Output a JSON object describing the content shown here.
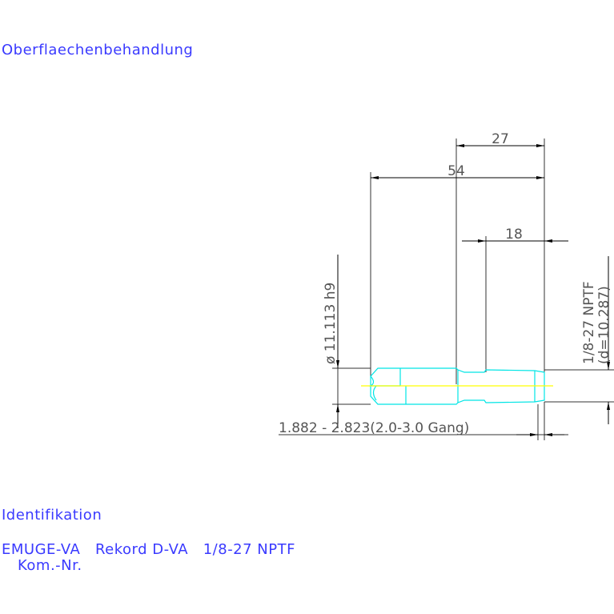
{
  "labels": {
    "surface": "Oberflaechenbehandlung",
    "identification": "Identifikation",
    "product": "EMUGE-VA   Rekord D-VA   1/8-27 NPTF",
    "order_no": "Kom.-Nr."
  },
  "dimensions": {
    "d27": "27",
    "d54": "54",
    "d18": "18",
    "diameter": "ø 11.113  h9",
    "thread": "1/8-27 NPTF",
    "thread_d": "(d=10.287)",
    "chamfer": "1.882 - 2.823(2.0-3.0 Gang)"
  },
  "colors": {
    "text": "#3a3aff",
    "part": "#00e5e5",
    "centerline": "#ffff00",
    "dim": "#000000"
  }
}
